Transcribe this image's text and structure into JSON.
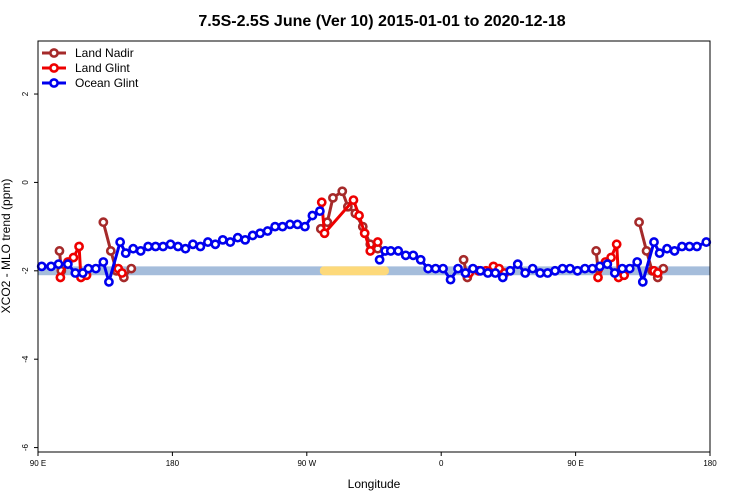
{
  "chart_data": {
    "type": "line",
    "title": "7.5S-2.5S June (Ver 10)   2015-01-01 to 2020-12-18",
    "xlabel": "Longitude",
    "ylabel": "XCO2 - MLO trend (ppm)",
    "xlim": [
      0,
      360
    ],
    "ylim": [
      -6.1,
      3.2
    ],
    "x_ticks": [
      {
        "value": 0,
        "label": "90 E"
      },
      {
        "value": 72,
        "label": "180"
      },
      {
        "value": 144,
        "label": "90 W"
      },
      {
        "value": 216,
        "label": "0"
      },
      {
        "value": 288,
        "label": "90 E"
      },
      {
        "value": 360,
        "label": "180"
      }
    ],
    "y_ticks": [
      {
        "value": 2,
        "label": "2"
      },
      {
        "value": 0,
        "label": "0"
      },
      {
        "value": -2,
        "label": "-2"
      },
      {
        "value": -4,
        "label": "-4"
      },
      {
        "value": -6,
        "label": "-6"
      }
    ],
    "legend_position": "top-left",
    "background_bands": [
      {
        "color": "#a5bddb",
        "x0": 0,
        "x1": 360,
        "y0": -2.1,
        "y1": -1.9
      },
      {
        "color": "#fdd97a",
        "x0": 151,
        "x1": 188,
        "y0": -2.1,
        "y1": -1.9
      }
    ],
    "series": [
      {
        "name": "Land Nadir",
        "color": "#a52a2a",
        "segments": [
          [
            [
              11.5,
              -1.55
            ],
            [
              12.5,
              -2.0
            ]
          ],
          [
            [
              35,
              -0.9
            ],
            [
              39,
              -1.55
            ],
            [
              42,
              -2.0
            ],
            [
              46,
              -2.15
            ],
            [
              50,
              -1.95
            ]
          ],
          [
            [
              151.5,
              -1.05
            ],
            [
              155,
              -0.9
            ],
            [
              158,
              -0.35
            ],
            [
              163,
              -0.2
            ],
            [
              166,
              -0.55
            ],
            [
              170,
              -0.7
            ],
            [
              174,
              -1.0
            ],
            [
              178,
              -1.4
            ],
            [
              182,
              -1.5
            ]
          ],
          [
            [
              228,
              -1.75
            ],
            [
              230,
              -2.15
            ]
          ],
          [
            [
              299,
              -1.55
            ],
            [
              300,
              -1.95
            ]
          ],
          [
            [
              322,
              -0.9
            ],
            [
              326,
              -1.55
            ],
            [
              329,
              -2.0
            ],
            [
              332,
              -2.15
            ],
            [
              335,
              -1.95
            ]
          ]
        ]
      },
      {
        "name": "Land Glint",
        "color": "#ee0000",
        "segments": [
          [
            [
              12,
              -2.15
            ],
            [
              16,
              -1.8
            ],
            [
              19,
              -1.7
            ],
            [
              22,
              -1.45
            ],
            [
              23,
              -2.15
            ],
            [
              26,
              -2.1
            ]
          ],
          [
            [
              43,
              -1.95
            ],
            [
              45,
              -2.05
            ]
          ],
          [
            [
              152,
              -0.45
            ],
            [
              153.5,
              -1.15
            ],
            [
              169,
              -0.4
            ],
            [
              172,
              -0.75
            ],
            [
              175,
              -1.15
            ],
            [
              178,
              -1.55
            ],
            [
              182,
              -1.35
            ]
          ],
          [
            [
              231,
              -2.05
            ],
            [
              236,
              -2.0
            ],
            [
              240,
              -2.0
            ],
            [
              244,
              -1.9
            ],
            [
              247,
              -1.95
            ],
            [
              250,
              -2.05
            ]
          ],
          [
            [
              300,
              -2.15
            ],
            [
              304,
              -1.8
            ],
            [
              307,
              -1.7
            ],
            [
              310,
              -1.4
            ],
            [
              311,
              -2.15
            ],
            [
              314,
              -2.1
            ]
          ],
          [
            [
              330,
              -2.0
            ],
            [
              332,
              -2.05
            ]
          ]
        ]
      },
      {
        "name": "Ocean Glint",
        "color": "#0000ee",
        "segments": [
          [
            [
              2,
              -1.9
            ],
            [
              7,
              -1.9
            ],
            [
              11,
              -1.85
            ],
            [
              16,
              -1.85
            ],
            [
              20,
              -2.05
            ],
            [
              24,
              -2.05
            ],
            [
              27,
              -1.95
            ],
            [
              31,
              -1.95
            ],
            [
              35,
              -1.8
            ],
            [
              38,
              -2.25
            ],
            [
              44,
              -1.35
            ],
            [
              47,
              -1.6
            ],
            [
              51,
              -1.5
            ],
            [
              55,
              -1.55
            ],
            [
              59,
              -1.45
            ],
            [
              63,
              -1.45
            ],
            [
              67,
              -1.45
            ],
            [
              71,
              -1.4
            ],
            [
              75,
              -1.45
            ],
            [
              79,
              -1.5
            ],
            [
              83,
              -1.4
            ],
            [
              87,
              -1.45
            ],
            [
              91,
              -1.35
            ],
            [
              95,
              -1.4
            ],
            [
              99,
              -1.3
            ],
            [
              103,
              -1.35
            ],
            [
              107,
              -1.25
            ],
            [
              111,
              -1.3
            ],
            [
              115,
              -1.2
            ],
            [
              119,
              -1.15
            ],
            [
              123,
              -1.1
            ],
            [
              127,
              -1.0
            ],
            [
              131,
              -1.0
            ],
            [
              135,
              -0.95
            ],
            [
              139,
              -0.95
            ],
            [
              143,
              -1.0
            ],
            [
              147,
              -0.75
            ],
            [
              151,
              -0.65
            ]
          ],
          [
            [
              183,
              -1.75
            ],
            [
              186,
              -1.55
            ],
            [
              189,
              -1.55
            ],
            [
              193,
              -1.55
            ],
            [
              197,
              -1.65
            ],
            [
              201,
              -1.65
            ],
            [
              205,
              -1.75
            ],
            [
              209,
              -1.95
            ],
            [
              213,
              -1.95
            ],
            [
              217,
              -1.95
            ],
            [
              221,
              -2.2
            ],
            [
              225,
              -1.95
            ],
            [
              229,
              -2.05
            ],
            [
              233,
              -1.95
            ],
            [
              237,
              -2.0
            ],
            [
              241,
              -2.05
            ],
            [
              245,
              -2.05
            ],
            [
              249,
              -2.15
            ],
            [
              253,
              -2.0
            ],
            [
              257,
              -1.85
            ],
            [
              261,
              -2.05
            ],
            [
              265,
              -1.95
            ],
            [
              269,
              -2.05
            ],
            [
              273,
              -2.05
            ],
            [
              277,
              -2.0
            ],
            [
              281,
              -1.95
            ],
            [
              285,
              -1.95
            ],
            [
              289,
              -2.0
            ],
            [
              293,
              -1.95
            ],
            [
              297,
              -1.95
            ],
            [
              301,
              -1.9
            ],
            [
              305,
              -1.85
            ],
            [
              309,
              -2.05
            ],
            [
              313,
              -1.95
            ],
            [
              317,
              -1.95
            ],
            [
              321,
              -1.8
            ],
            [
              324,
              -2.25
            ],
            [
              330,
              -1.35
            ],
            [
              333,
              -1.6
            ],
            [
              337,
              -1.5
            ],
            [
              341,
              -1.55
            ],
            [
              345,
              -1.45
            ],
            [
              349,
              -1.45
            ],
            [
              353,
              -1.45
            ],
            [
              358,
              -1.35
            ]
          ]
        ]
      }
    ]
  }
}
